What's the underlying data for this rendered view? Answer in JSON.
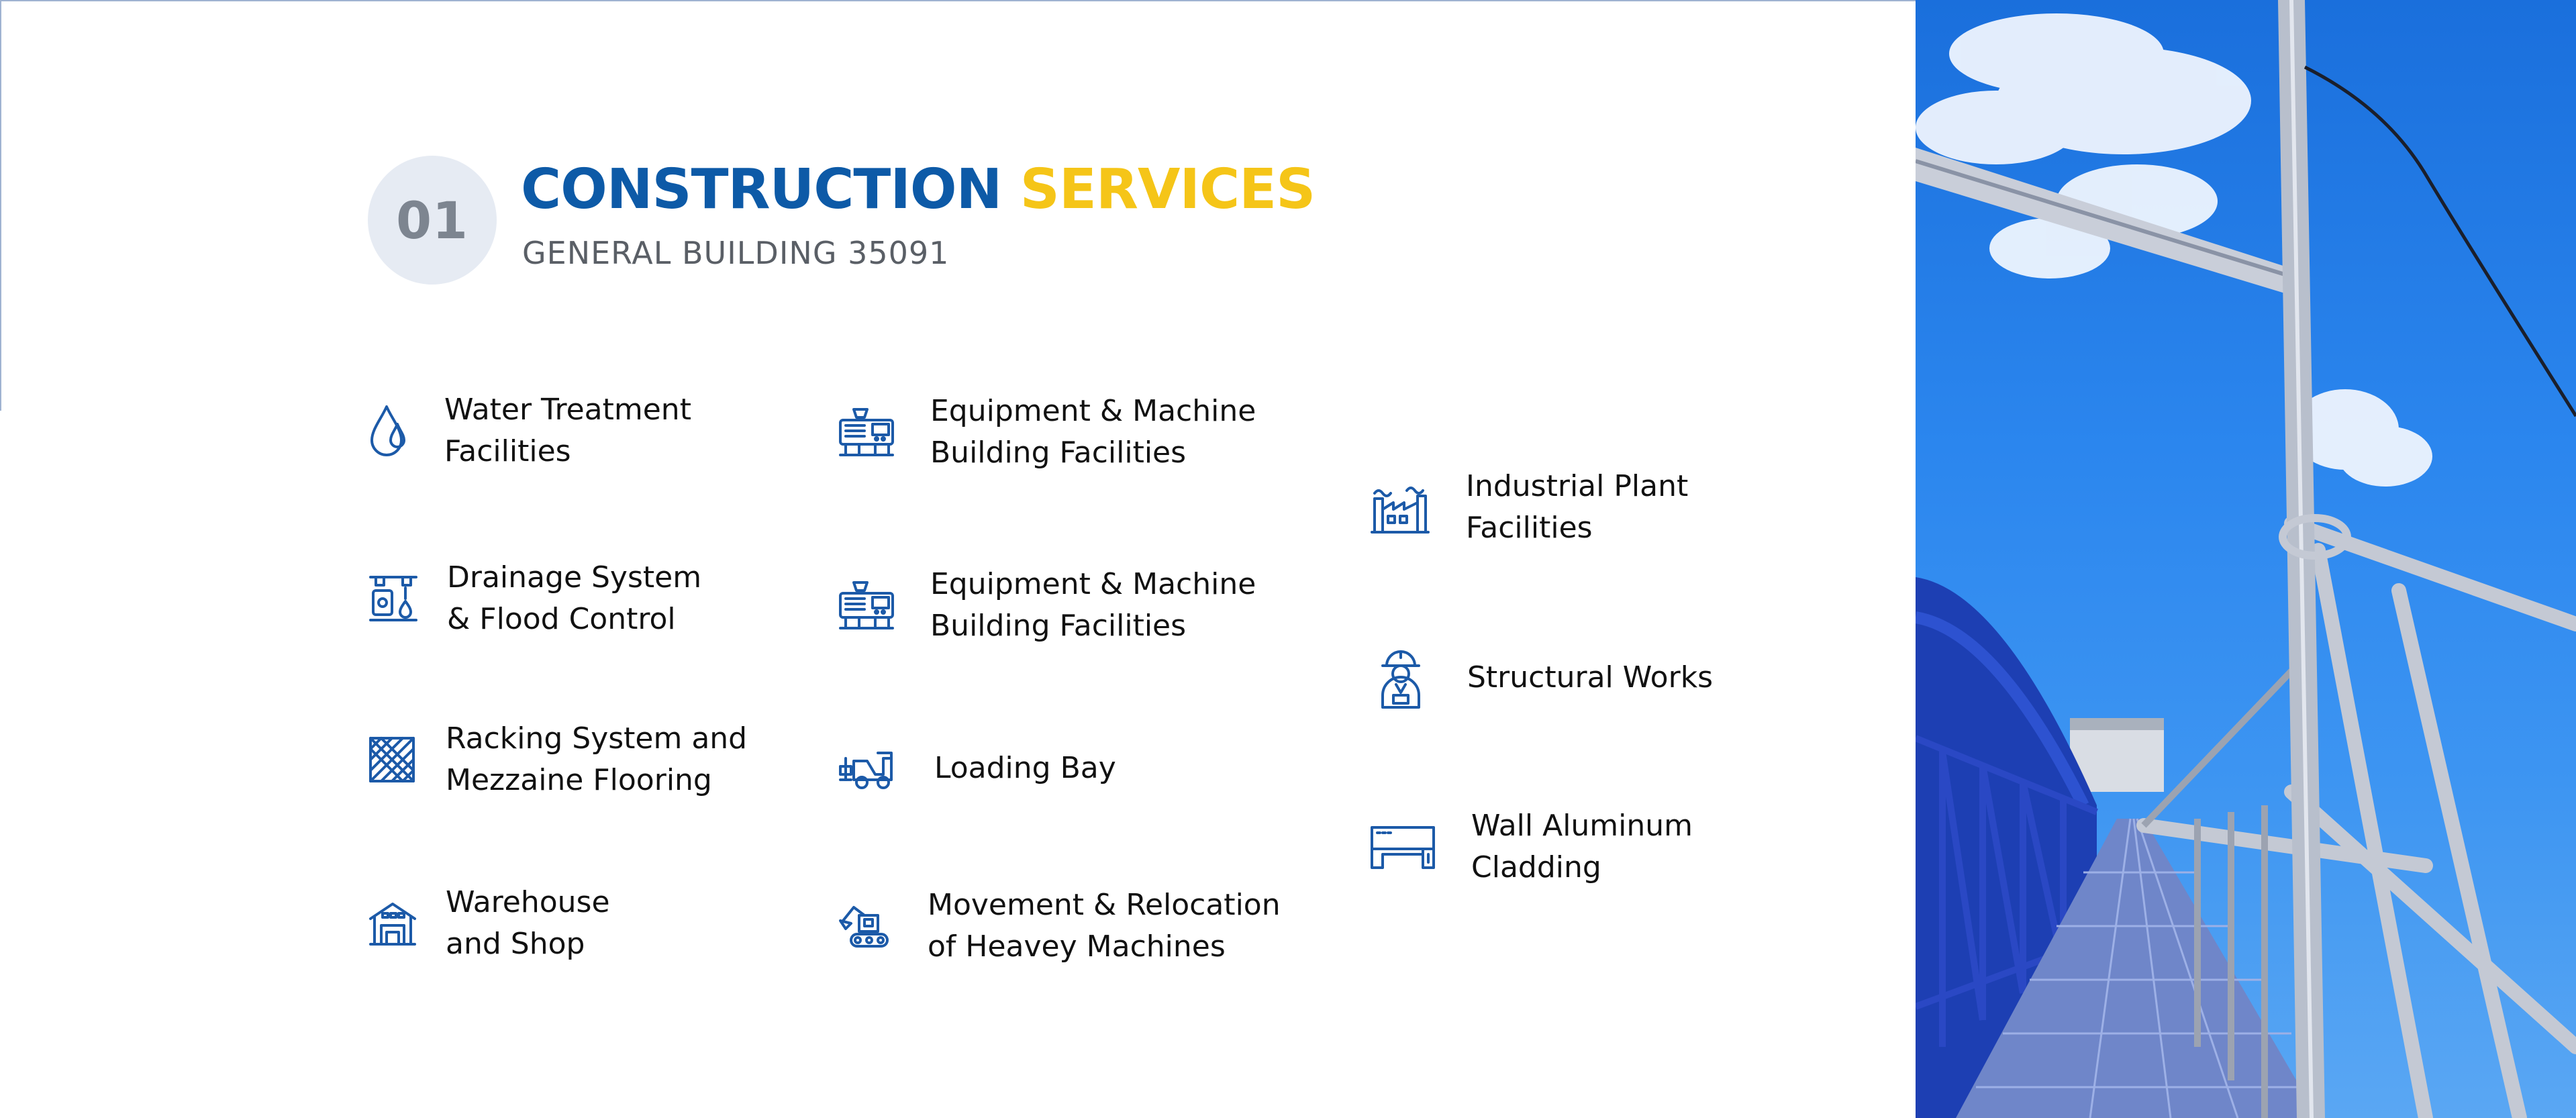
{
  "section": {
    "number": "01",
    "title_part1": "CONSTRUCTION",
    "title_part2": "SERVICES",
    "subtitle": "GENERAL BUILDING 35091"
  },
  "colors": {
    "primary_blue": "#0d5aa7",
    "accent_yellow": "#f5c518",
    "badge_bg": "#e6ebf3",
    "icon_blue": "#1c5aa8"
  },
  "services": {
    "col1": [
      {
        "label": "Water Treatment\nFacilities",
        "icon": "water-drop-icon"
      },
      {
        "label": "Drainage System\n& Flood Control",
        "icon": "drainage-icon"
      },
      {
        "label": "Racking System and\nMezzaine Flooring",
        "icon": "racking-icon"
      },
      {
        "label": "Warehouse\nand Shop",
        "icon": "warehouse-icon"
      }
    ],
    "col2": [
      {
        "label": "Equipment & Machine\nBuilding Facilities",
        "icon": "machine-icon"
      },
      {
        "label": "Equipment & Machine\nBuilding Facilities",
        "icon": "machine-icon"
      },
      {
        "label": "Loading Bay",
        "icon": "forklift-icon"
      },
      {
        "label": "Movement & Relocation\nof Heavey Machines",
        "icon": "excavator-icon"
      }
    ],
    "col3": [
      {
        "label": "Industrial Plant\nFacilities",
        "icon": "factory-icon"
      },
      {
        "label": "Structural Works",
        "icon": "worker-icon"
      },
      {
        "label": "Wall Aluminum\nCladding",
        "icon": "cladding-icon"
      }
    ]
  }
}
